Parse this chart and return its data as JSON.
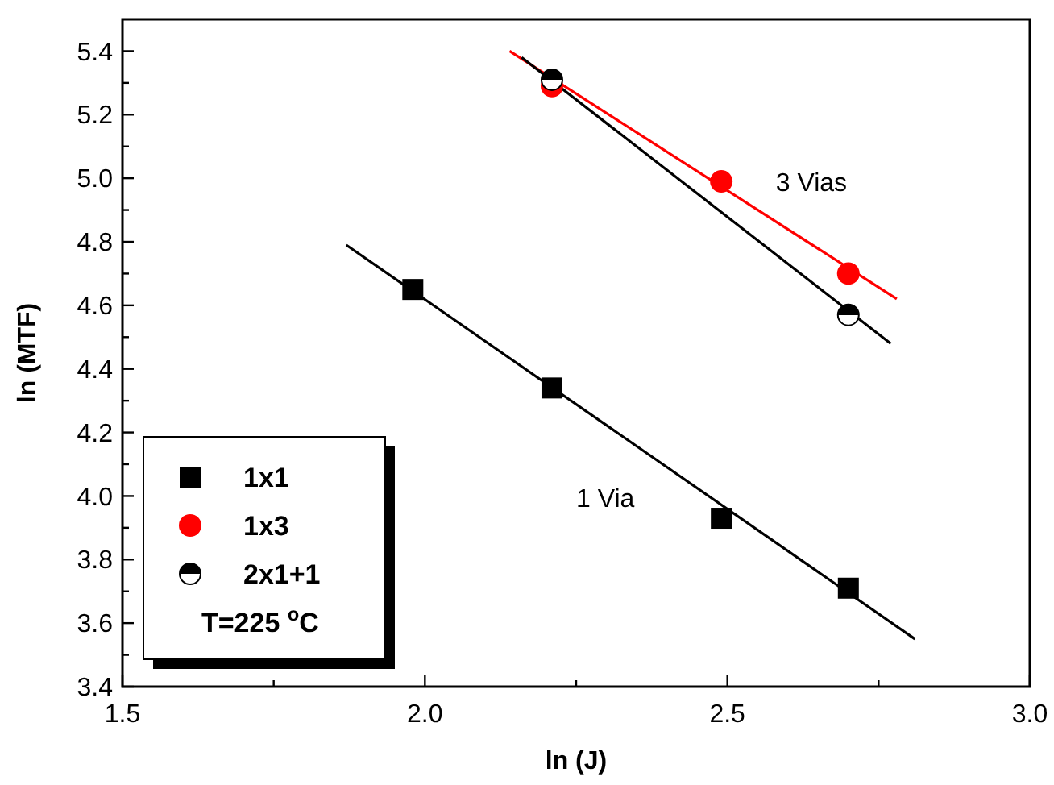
{
  "chart_data": {
    "type": "scatter",
    "xlabel": "ln (J)",
    "ylabel": "ln (MTF)",
    "xlim": [
      1.5,
      3.0
    ],
    "ylim": [
      3.4,
      5.5
    ],
    "xticks": [
      {
        "value": 1.5,
        "label": "1.5"
      },
      {
        "value": 1.75,
        "label": null
      },
      {
        "value": 2.0,
        "label": "2.0"
      },
      {
        "value": 2.25,
        "label": null
      },
      {
        "value": 2.5,
        "label": "2.5"
      },
      {
        "value": 2.75,
        "label": null
      },
      {
        "value": 3.0,
        "label": "3.0"
      }
    ],
    "yticks": [
      {
        "value": 3.4,
        "label": "3.4"
      },
      {
        "value": 3.5,
        "label": null
      },
      {
        "value": 3.6,
        "label": "3.6"
      },
      {
        "value": 3.7,
        "label": null
      },
      {
        "value": 3.8,
        "label": "3.8"
      },
      {
        "value": 3.9,
        "label": null
      },
      {
        "value": 4.0,
        "label": "4.0"
      },
      {
        "value": 4.1,
        "label": null
      },
      {
        "value": 4.2,
        "label": "4.2"
      },
      {
        "value": 4.3,
        "label": null
      },
      {
        "value": 4.4,
        "label": "4.4"
      },
      {
        "value": 4.5,
        "label": null
      },
      {
        "value": 4.6,
        "label": "4.6"
      },
      {
        "value": 4.7,
        "label": null
      },
      {
        "value": 4.8,
        "label": "4.8"
      },
      {
        "value": 4.9,
        "label": null
      },
      {
        "value": 5.0,
        "label": "5.0"
      },
      {
        "value": 5.1,
        "label": null
      },
      {
        "value": 5.2,
        "label": "5.2"
      },
      {
        "value": 5.3,
        "label": null
      },
      {
        "value": 5.4,
        "label": "5.4"
      }
    ],
    "series": [
      {
        "type": "line",
        "color": "#000000",
        "x": [
          1.87,
          2.81
        ],
        "values": [
          4.79,
          3.55
        ]
      },
      {
        "type": "line",
        "color": "#ff0000",
        "x": [
          2.14,
          2.78
        ],
        "values": [
          5.4,
          4.62
        ]
      },
      {
        "type": "line",
        "color": "#000000",
        "x": [
          2.16,
          2.77
        ],
        "values": [
          5.38,
          4.48
        ]
      },
      {
        "name": "1x1",
        "color": "#000000",
        "x": [
          1.98,
          2.21,
          2.49,
          2.7
        ],
        "values": [
          4.65,
          4.34,
          3.93,
          3.71
        ],
        "marker": "square"
      },
      {
        "name": "1x3",
        "color": "#ff0000",
        "x": [
          2.21,
          2.49,
          2.7
        ],
        "values": [
          5.29,
          4.99,
          4.7
        ],
        "marker": "circle"
      },
      {
        "name": "2x1+1",
        "color": "#000000",
        "x": [
          2.21,
          2.7
        ],
        "values": [
          5.31,
          4.57
        ],
        "marker": "half-circle"
      }
    ],
    "legend": "bottom left",
    "legend_title": "T=225 $^{o}$C",
    "annotations": [
      "3 Vias",
      "1 Via"
    ]
  }
}
